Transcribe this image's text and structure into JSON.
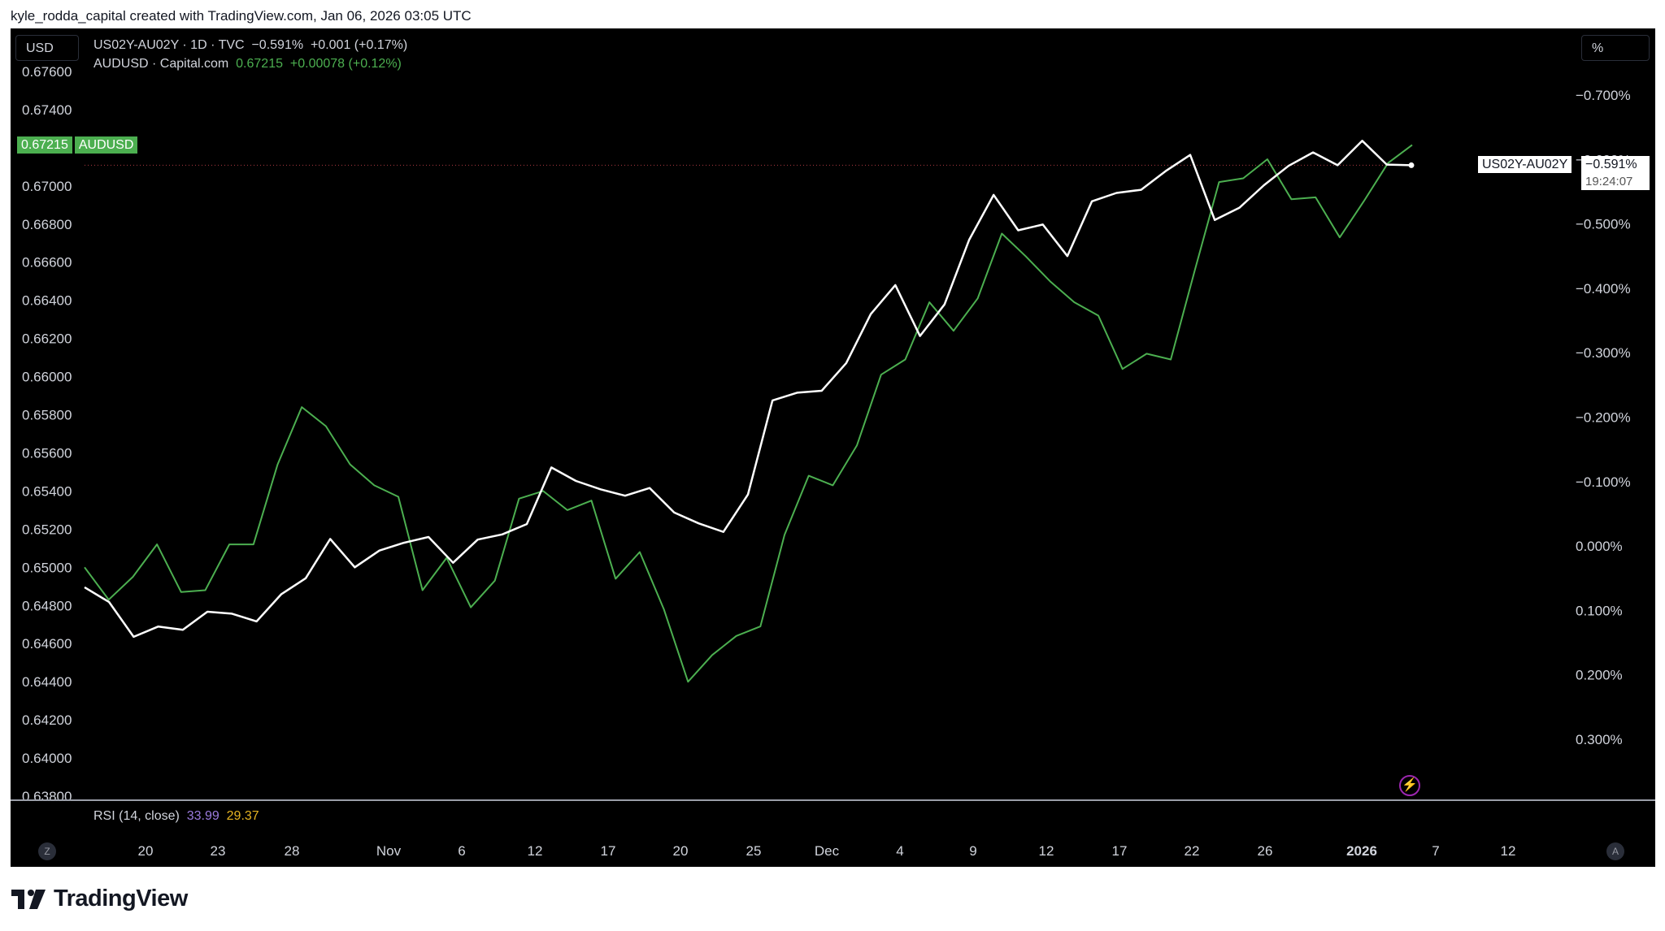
{
  "header": {
    "attribution": "kyle_rodda_capital created with TradingView.com, Jan 06, 2026 03:05 UTC"
  },
  "toolbar": {
    "currency_label": "USD",
    "percent_label": "%"
  },
  "legend": {
    "series1": {
      "name": "US02Y-AU02Y · 1D · TVC",
      "value": "−0.591%",
      "change": "+0.001 (+0.17%)"
    },
    "series2": {
      "name": "AUDUSD · Capital.com",
      "value": "0.67215",
      "change": "+0.00078 (+0.12%)"
    }
  },
  "price_tags": {
    "audusd_value": "0.67215",
    "audusd_label": "AUDUSD",
    "spread_label": "US02Y-AU02Y",
    "spread_value": "−0.591%",
    "countdown": "19:24:07"
  },
  "rsi": {
    "label": "RSI (14, close)",
    "value1": "33.99",
    "value2": "29.37"
  },
  "bottom_buttons": {
    "left": "Z",
    "right": "A"
  },
  "footer": {
    "brand": "TradingView"
  },
  "colors": {
    "audusd": "#4caf50",
    "spread": "#ffffff",
    "rsi_value1": "#9b7bdf",
    "rsi_value2": "#e6b422",
    "alert_icon": "#9c27b0"
  },
  "chart_data": {
    "type": "line",
    "left_axis": {
      "ticks": [
        "0.67600",
        "0.67400",
        "0.67200",
        "0.67000",
        "0.66800",
        "0.66600",
        "0.66400",
        "0.66200",
        "0.66000",
        "0.65800",
        "0.65600",
        "0.65400",
        "0.65200",
        "0.65000",
        "0.64800",
        "0.64600",
        "0.64400",
        "0.64200",
        "0.64000",
        "0.63800"
      ],
      "range": [
        0.638,
        0.676
      ]
    },
    "right_axis": {
      "ticks": [
        "−0.700%",
        "−0.600%",
        "−0.500%",
        "−0.400%",
        "−0.300%",
        "−0.200%",
        "−0.100%",
        "0.000%",
        "0.100%",
        "0.200%",
        "0.300%"
      ],
      "inverted": true,
      "range": [
        -0.7,
        0.3
      ]
    },
    "x_ticks": [
      "20",
      "23",
      "28",
      "Nov",
      "6",
      "12",
      "17",
      "20",
      "25",
      "Dec",
      "4",
      "9",
      "12",
      "17",
      "22",
      "26",
      "2026",
      "7",
      "12"
    ],
    "series": [
      {
        "name": "AUDUSD",
        "axis": "left",
        "color": "#4caf50",
        "values": [
          0.65,
          0.6483,
          0.6495,
          0.6512,
          0.6487,
          0.6488,
          0.6512,
          0.6512,
          0.6554,
          0.6584,
          0.6574,
          0.6554,
          0.6543,
          0.6537,
          0.6488,
          0.6505,
          0.6479,
          0.6493,
          0.6536,
          0.654,
          0.653,
          0.6535,
          0.6494,
          0.6508,
          0.6478,
          0.644,
          0.6454,
          0.6464,
          0.6469,
          0.6517,
          0.6548,
          0.6543,
          0.6564,
          0.6601,
          0.6609,
          0.6639,
          0.6624,
          0.6641,
          0.6675,
          0.6663,
          0.665,
          0.6639,
          0.6632,
          0.6604,
          0.6612,
          0.6609,
          0.6656,
          0.6702,
          0.6704,
          0.6714,
          0.6693,
          0.6694,
          0.6673,
          0.6692,
          0.6712,
          0.67215
        ]
      },
      {
        "name": "US02Y-AU02Y",
        "axis": "right",
        "color": "#ffffff",
        "values": [
          0.064,
          0.087,
          0.141,
          0.125,
          0.13,
          0.102,
          0.105,
          0.117,
          0.075,
          0.05,
          -0.011,
          0.033,
          0.007,
          -0.005,
          -0.014,
          0.026,
          -0.01,
          -0.018,
          -0.034,
          -0.122,
          -0.101,
          -0.088,
          -0.078,
          -0.09,
          -0.052,
          -0.035,
          -0.022,
          -0.08,
          -0.226,
          -0.238,
          -0.241,
          -0.284,
          -0.36,
          -0.405,
          -0.326,
          -0.375,
          -0.475,
          -0.545,
          -0.49,
          -0.499,
          -0.45,
          -0.535,
          -0.548,
          -0.553,
          -0.582,
          -0.607,
          -0.506,
          -0.525,
          -0.56,
          -0.59,
          -0.611,
          -0.591,
          -0.629,
          -0.592,
          -0.591
        ]
      }
    ]
  }
}
